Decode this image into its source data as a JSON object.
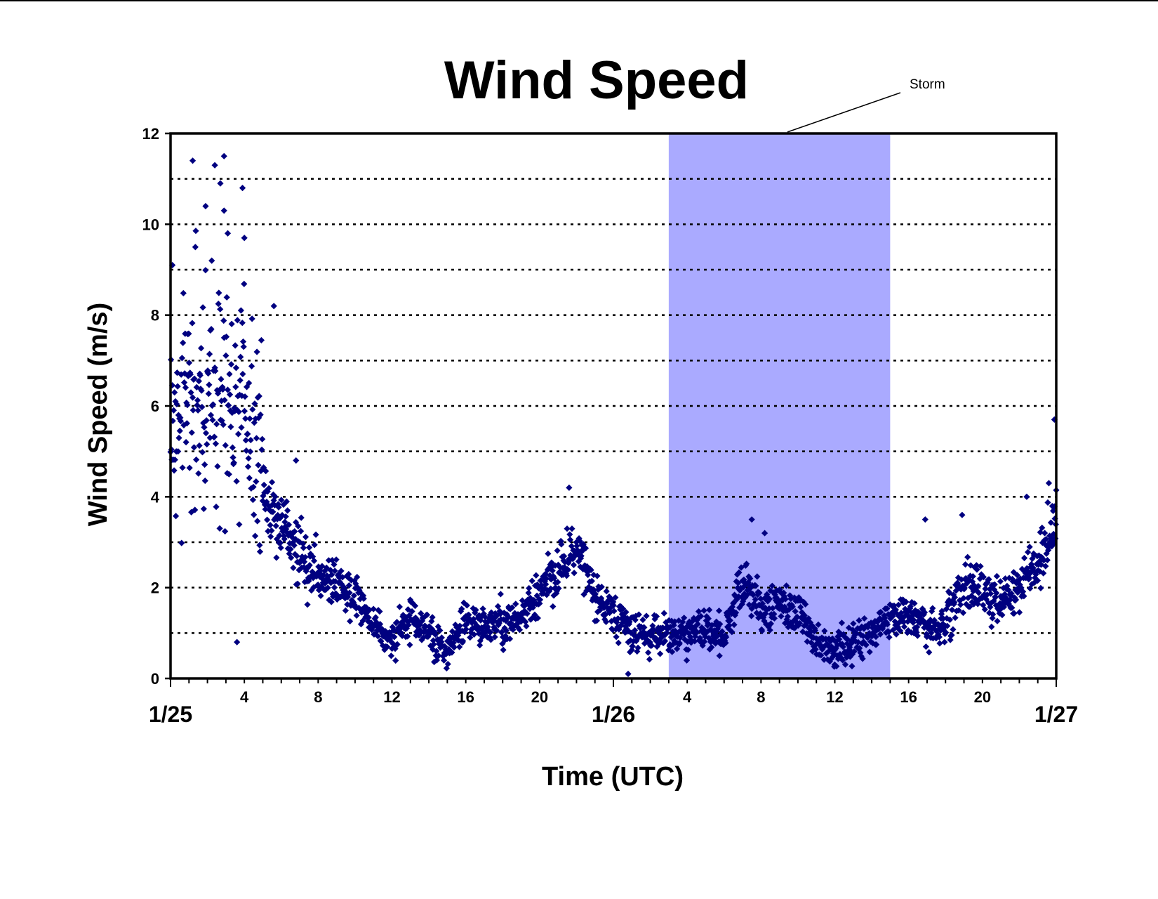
{
  "chart_data": {
    "type": "scatter",
    "title": "Wind Speed",
    "xlabel": "Time (UTC)",
    "ylabel": "Wind Speed (m/s)",
    "xlim_hours": [
      0,
      48
    ],
    "ylim": [
      0,
      12
    ],
    "y_ticks": [
      "0",
      "2",
      "4",
      "6",
      "8",
      "10",
      "12"
    ],
    "hour_ticks": [
      {
        "hour": 4,
        "label": "4"
      },
      {
        "hour": 8,
        "label": "8"
      },
      {
        "hour": 12,
        "label": "12"
      },
      {
        "hour": 16,
        "label": "16"
      },
      {
        "hour": 20,
        "label": "20"
      },
      {
        "hour": 28,
        "label": "4"
      },
      {
        "hour": 32,
        "label": "8"
      },
      {
        "hour": 36,
        "label": "12"
      },
      {
        "hour": 40,
        "label": "16"
      },
      {
        "hour": 44,
        "label": "20"
      }
    ],
    "day_ticks": [
      {
        "hour": 0,
        "label": "1/25"
      },
      {
        "hour": 24,
        "label": "1/26"
      },
      {
        "hour": 48,
        "label": "1/27"
      }
    ],
    "grid": "horizontal dotted lines every 1 m/s",
    "legend": "none",
    "shaded_region": {
      "label": "Storm",
      "x_start_hour": 27,
      "x_end_hour": 39,
      "color": "#aaaaff"
    },
    "series": [
      {
        "marker_color": "#000080",
        "trend": [
          {
            "hour": 0,
            "value": 5.5
          },
          {
            "hour": 1,
            "value": 6.0
          },
          {
            "hour": 2,
            "value": 6.3
          },
          {
            "hour": 3,
            "value": 6.5
          },
          {
            "hour": 4,
            "value": 6.0
          },
          {
            "hour": 5,
            "value": 4.2
          },
          {
            "hour": 6,
            "value": 3.4
          },
          {
            "hour": 7,
            "value": 2.8
          },
          {
            "hour": 8,
            "value": 2.3
          },
          {
            "hour": 9,
            "value": 2.1
          },
          {
            "hour": 10,
            "value": 1.8
          },
          {
            "hour": 11,
            "value": 1.2
          },
          {
            "hour": 12,
            "value": 0.8
          },
          {
            "hour": 13,
            "value": 1.3
          },
          {
            "hour": 14,
            "value": 1.0
          },
          {
            "hour": 15,
            "value": 0.6
          },
          {
            "hour": 16,
            "value": 1.2
          },
          {
            "hour": 17,
            "value": 1.2
          },
          {
            "hour": 18,
            "value": 1.2
          },
          {
            "hour": 19,
            "value": 1.3
          },
          {
            "hour": 20,
            "value": 2.0
          },
          {
            "hour": 21,
            "value": 2.3
          },
          {
            "hour": 22,
            "value": 3.0
          },
          {
            "hour": 23,
            "value": 1.8
          },
          {
            "hour": 24,
            "value": 1.4
          },
          {
            "hour": 25,
            "value": 1.0
          },
          {
            "hour": 26,
            "value": 1.0
          },
          {
            "hour": 27,
            "value": 1.0
          },
          {
            "hour": 28,
            "value": 1.0
          },
          {
            "hour": 29,
            "value": 1.1
          },
          {
            "hour": 30,
            "value": 0.9
          },
          {
            "hour": 31,
            "value": 2.2
          },
          {
            "hour": 32,
            "value": 1.5
          },
          {
            "hour": 33,
            "value": 1.6
          },
          {
            "hour": 34,
            "value": 1.5
          },
          {
            "hour": 35,
            "value": 0.8
          },
          {
            "hour": 36,
            "value": 0.6
          },
          {
            "hour": 37,
            "value": 0.8
          },
          {
            "hour": 38,
            "value": 1.0
          },
          {
            "hour": 39,
            "value": 1.4
          },
          {
            "hour": 40,
            "value": 1.3
          },
          {
            "hour": 41,
            "value": 1.1
          },
          {
            "hour": 42,
            "value": 1.2
          },
          {
            "hour": 43,
            "value": 2.1
          },
          {
            "hour": 44,
            "value": 2.0
          },
          {
            "hour": 45,
            "value": 1.7
          },
          {
            "hour": 46,
            "value": 2.0
          },
          {
            "hour": 47,
            "value": 2.5
          },
          {
            "hour": 48,
            "value": 3.5
          }
        ],
        "notable_points": [
          {
            "hour": 1.2,
            "value": 11.4
          },
          {
            "hour": 2.4,
            "value": 11.3
          },
          {
            "hour": 2.9,
            "value": 11.5
          },
          {
            "hour": 2.7,
            "value": 10.9
          },
          {
            "hour": 3.9,
            "value": 10.8
          },
          {
            "hour": 1.9,
            "value": 10.4
          },
          {
            "hour": 2.9,
            "value": 10.3
          },
          {
            "hour": 3.1,
            "value": 9.8
          },
          {
            "hour": 4.0,
            "value": 9.7
          },
          {
            "hour": 0.1,
            "value": 9.1
          },
          {
            "hour": 5.6,
            "value": 8.2
          },
          {
            "hour": 6.8,
            "value": 4.8
          },
          {
            "hour": 21.6,
            "value": 4.2
          },
          {
            "hour": 31.5,
            "value": 3.5
          },
          {
            "hour": 32.2,
            "value": 3.2
          },
          {
            "hour": 40.9,
            "value": 3.5
          },
          {
            "hour": 42.9,
            "value": 3.6
          },
          {
            "hour": 46.4,
            "value": 4.0
          },
          {
            "hour": 47.9,
            "value": 5.7
          },
          {
            "hour": 47.6,
            "value": 4.3
          },
          {
            "hour": 3.6,
            "value": 0.8
          },
          {
            "hour": 24.8,
            "value": 0.1
          }
        ]
      }
    ]
  }
}
